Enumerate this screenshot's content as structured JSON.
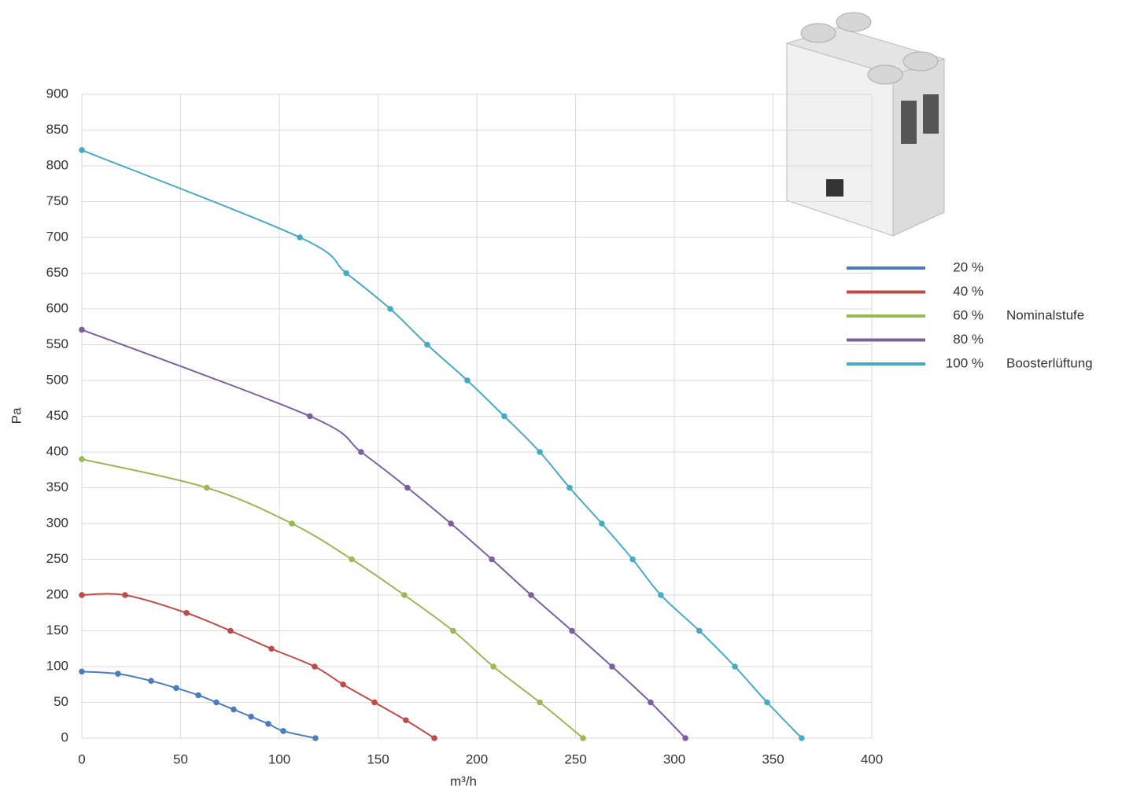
{
  "chart_data": {
    "type": "line",
    "x_label": "m³/h",
    "y_label": "Pa",
    "xlim": [
      0,
      400
    ],
    "xticks": [
      0,
      50,
      100,
      150,
      200,
      250,
      300,
      350,
      400
    ],
    "ylim": [
      0,
      900
    ],
    "yticks": [
      0,
      50,
      100,
      150,
      200,
      250,
      300,
      350,
      400,
      450,
      500,
      550,
      600,
      650,
      700,
      750,
      800,
      850,
      900
    ],
    "grid": true,
    "legend": "right",
    "smooth": true,
    "markers": true,
    "series": [
      {
        "name": "20 %",
        "color": "#4a7ebb",
        "x": [
          0,
          18.3,
          35.1,
          47.8,
          59.0,
          68.1,
          76.9,
          85.7,
          94.4,
          102.0,
          118.3
        ],
        "values": [
          93,
          90,
          80,
          70,
          60,
          50,
          40,
          30,
          20,
          10,
          0
        ]
      },
      {
        "name": "40 %",
        "color": "#be4b48",
        "x": [
          0,
          21.9,
          53.0,
          75.3,
          96.0,
          117.9,
          132.3,
          148.2,
          164.1,
          178.5
        ],
        "values": [
          200,
          200,
          175,
          150,
          125,
          100,
          75,
          50,
          25,
          0
        ]
      },
      {
        "name": "60 %",
        "legend_note": "Nominalstufe",
        "color": "#98b954",
        "x": [
          0,
          63.3,
          106.4,
          136.7,
          163.3,
          188.0,
          208.4,
          231.9,
          253.8
        ],
        "values": [
          390,
          350,
          300,
          250,
          200,
          150,
          100,
          50,
          0
        ]
      },
      {
        "name": "80 %",
        "color": "#7d5fa0",
        "x": [
          0,
          115.5,
          141.4,
          164.9,
          186.9,
          207.6,
          227.5,
          248.2,
          268.5,
          288.0,
          305.6
        ],
        "values": [
          571,
          450,
          400,
          350,
          300,
          250,
          200,
          150,
          100,
          50,
          0
        ]
      },
      {
        "name": "100 %",
        "legend_note": "Boosterlüftung",
        "color": "#46aac5",
        "x": [
          0,
          110.4,
          133.9,
          156.2,
          174.9,
          195.2,
          213.9,
          231.9,
          247.0,
          263.3,
          278.9,
          293.2,
          312.7,
          330.7,
          347.0,
          364.5
        ],
        "values": [
          822,
          700,
          650,
          600,
          550,
          500,
          450,
          400,
          350,
          300,
          250,
          200,
          150,
          100,
          50,
          0
        ]
      }
    ]
  }
}
